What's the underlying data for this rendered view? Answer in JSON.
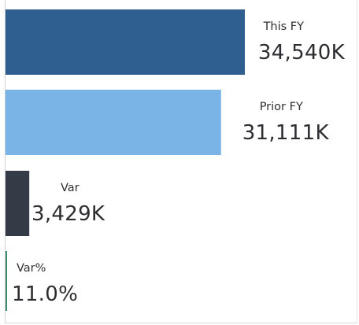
{
  "chart_data": {
    "type": "bar",
    "orientation": "horizontal",
    "title": "",
    "xlabel": "",
    "ylabel": "",
    "grid": false,
    "categories": [
      "This FY",
      "Prior FY",
      "Var",
      "Var%"
    ],
    "values": [
      34540,
      31111,
      3429,
      11.0
    ],
    "value_labels": [
      "34,540K",
      "31,111K",
      "3,429K",
      "11.0%"
    ],
    "colors": [
      "#2e5f90",
      "#7ab4e6",
      "#353b46",
      "#3a8c6a"
    ],
    "xlim": [
      0,
      34540
    ]
  }
}
